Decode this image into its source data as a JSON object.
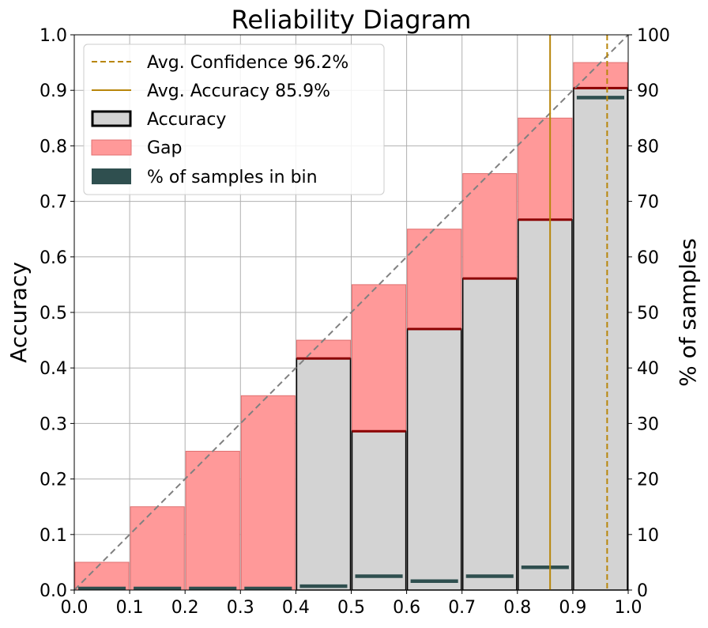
{
  "chart_data": {
    "type": "bar",
    "title": "Reliability Diagram",
    "xlabel": "",
    "ylabel": "Accuracy",
    "y2label": "% of samples",
    "xlim": [
      0.0,
      1.0
    ],
    "ylim": [
      0.0,
      1.0
    ],
    "y2lim": [
      0,
      100
    ],
    "grid": true,
    "legend_position": "top-left",
    "x_ticks": [
      "0.0",
      "0.1",
      "0.2",
      "0.3",
      "0.4",
      "0.5",
      "0.6",
      "0.7",
      "0.8",
      "0.9",
      "1.0"
    ],
    "y_ticks": [
      "0.0",
      "0.1",
      "0.2",
      "0.3",
      "0.4",
      "0.5",
      "0.6",
      "0.7",
      "0.8",
      "0.9",
      "1.0"
    ],
    "y2_ticks": [
      "0",
      "10",
      "20",
      "30",
      "40",
      "50",
      "60",
      "70",
      "80",
      "90",
      "100"
    ],
    "bins": [
      {
        "start": 0.0,
        "end": 0.1,
        "confidence": 0.05,
        "accuracy": 0.0,
        "pct_samples": 0.1
      },
      {
        "start": 0.1,
        "end": 0.2,
        "confidence": 0.15,
        "accuracy": 0.0,
        "pct_samples": 0.1
      },
      {
        "start": 0.2,
        "end": 0.3,
        "confidence": 0.25,
        "accuracy": 0.0,
        "pct_samples": 0.1
      },
      {
        "start": 0.3,
        "end": 0.4,
        "confidence": 0.35,
        "accuracy": 0.0,
        "pct_samples": 0.2
      },
      {
        "start": 0.4,
        "end": 0.5,
        "confidence": 0.45,
        "accuracy": 0.417,
        "pct_samples": 0.7
      },
      {
        "start": 0.5,
        "end": 0.6,
        "confidence": 0.55,
        "accuracy": 0.286,
        "pct_samples": 2.5
      },
      {
        "start": 0.6,
        "end": 0.7,
        "confidence": 0.65,
        "accuracy": 0.47,
        "pct_samples": 1.6
      },
      {
        "start": 0.7,
        "end": 0.8,
        "confidence": 0.75,
        "accuracy": 0.561,
        "pct_samples": 2.5
      },
      {
        "start": 0.8,
        "end": 0.9,
        "confidence": 0.85,
        "accuracy": 0.667,
        "pct_samples": 4.1
      },
      {
        "start": 0.9,
        "end": 1.0,
        "confidence": 0.95,
        "accuracy": 0.904,
        "pct_samples": 88.7
      }
    ],
    "avg_confidence": 0.962,
    "avg_accuracy": 0.859,
    "legend": [
      {
        "label": "Avg. Confidence 96.2%",
        "kind": "dashed-line"
      },
      {
        "label": "Avg. Accuracy 85.9%",
        "kind": "solid-line"
      },
      {
        "label": "Accuracy",
        "kind": "accuracy-patch"
      },
      {
        "label": "Gap",
        "kind": "gap-patch"
      },
      {
        "label": "% of samples in bin",
        "kind": "samples-patch"
      }
    ],
    "colors": {
      "accuracy_fill": "#d3d3d3",
      "gap_fill": "#ff9999",
      "gap_edge": "#e07070",
      "samples": "#2f4f4f",
      "avg_line": "#b8860b",
      "diagonal": "#808080",
      "accuracy_top": "#8b0000"
    }
  }
}
